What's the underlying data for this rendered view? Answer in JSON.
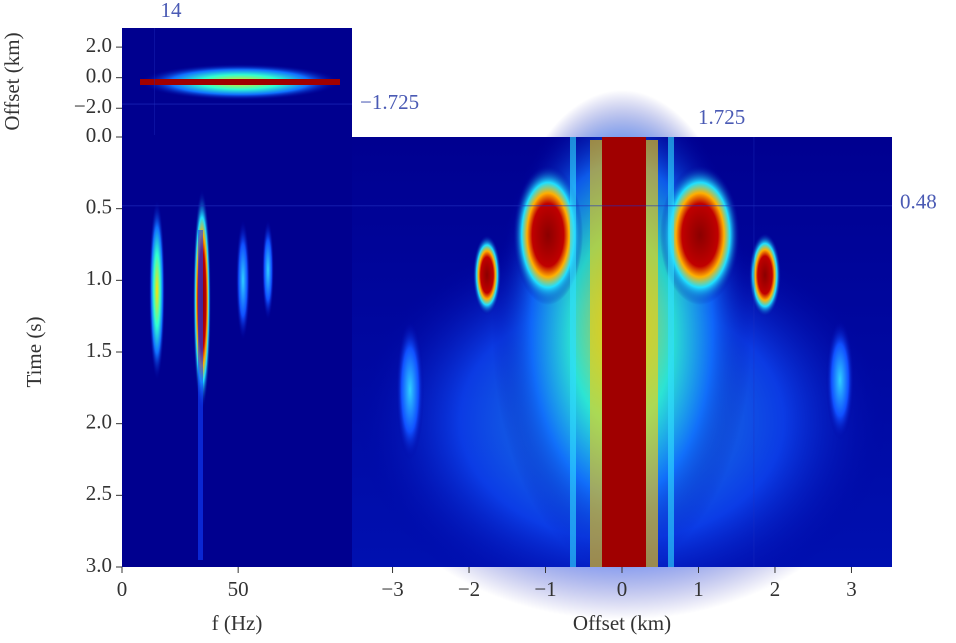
{
  "chart_data": [
    {
      "type": "heatmap",
      "ylabel": "Offset (km)",
      "xlim": [
        0,
        99
      ],
      "ylim": [
        -3.75,
        3.25
      ],
      "yticks": [
        {
          "value": 2,
          "label": "2.0"
        },
        {
          "value": 0,
          "label": "0.0"
        },
        {
          "value": -2,
          "label": "−2.0"
        }
      ],
      "annotations": [
        {
          "text": "14",
          "x": 14
        },
        {
          "text": "−1.725",
          "y": -1.725
        }
      ]
    },
    {
      "type": "heatmap",
      "ylabel": "Time (s)",
      "xlabel": "f (Hz)",
      "xlim": [
        0,
        99
      ],
      "ylim": [
        3,
        0
      ],
      "xticks": [
        0,
        50
      ],
      "yticks": [
        {
          "value": 0,
          "label": "0.0"
        },
        {
          "value": 0.5,
          "label": "0.5"
        },
        {
          "value": 1,
          "label": "1.0"
        },
        {
          "value": 1.5,
          "label": "1.5"
        },
        {
          "value": 2,
          "label": "2.0"
        },
        {
          "value": 2.5,
          "label": "2.5"
        },
        {
          "value": 3,
          "label": "3.0"
        }
      ]
    },
    {
      "type": "heatmap",
      "xlabel": "Offset (km)",
      "xlim": [
        -3.53,
        3.53
      ],
      "ylim": [
        3,
        0
      ],
      "xticks": [
        {
          "value": -3,
          "label": "−3"
        },
        {
          "value": -2,
          "label": "−2"
        },
        {
          "value": -1,
          "label": "−1"
        },
        0,
        1,
        2,
        3
      ],
      "annotations": [
        {
          "text": "1.725",
          "x": 1.725
        },
        {
          "text": "0.48",
          "y": 0.48
        }
      ]
    }
  ]
}
